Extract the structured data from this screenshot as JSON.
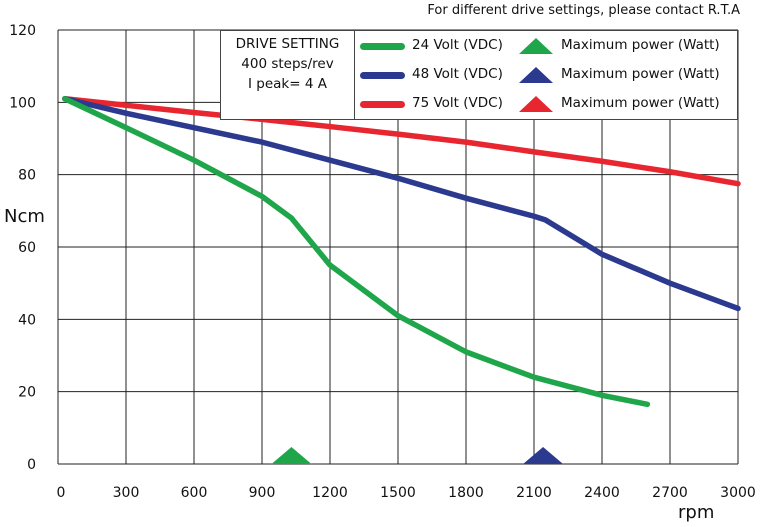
{
  "note": "For different drive settings, please contact R.T.A",
  "drive_setting": {
    "title": "DRIVE SETTING",
    "steps": "400 steps/rev",
    "peak": "I peak= 4 A"
  },
  "legend": [
    {
      "label": "24 Volt (VDC)",
      "power_label": "Maximum power (Watt)",
      "color": "#1fa64a"
    },
    {
      "label": "48 Volt (VDC)",
      "power_label": "Maximum power (Watt)",
      "color": "#2b3a8f"
    },
    {
      "label": "75 Volt (VDC)",
      "power_label": "Maximum power (Watt)",
      "color": "#e8262f"
    }
  ],
  "chart_data": {
    "type": "line",
    "title": "",
    "xlabel": "rpm",
    "ylabel": "Ncm",
    "xlim": [
      0,
      3000
    ],
    "ylim": [
      0,
      120
    ],
    "xticks": [
      0,
      300,
      600,
      900,
      1200,
      1500,
      1800,
      2100,
      2400,
      2700,
      3000
    ],
    "yticks": [
      0,
      20,
      40,
      60,
      80,
      100,
      120
    ],
    "grid": true,
    "series": [
      {
        "name": "24 Volt (VDC)",
        "color": "#1fa64a",
        "x": [
          30,
          300,
          600,
          900,
          1030,
          1200,
          1500,
          1800,
          2100,
          2400,
          2600
        ],
        "y": [
          101,
          93,
          84,
          74,
          68,
          55,
          41,
          31,
          24,
          19,
          16.5
        ],
        "max_power_rpm": 1030
      },
      {
        "name": "48 Volt (VDC)",
        "color": "#2b3a8f",
        "x": [
          30,
          300,
          600,
          900,
          1200,
          1500,
          1800,
          2100,
          2150,
          2400,
          2700,
          3000
        ],
        "y": [
          101,
          97,
          93,
          89,
          84,
          79,
          73.5,
          68.5,
          67.5,
          58,
          50,
          43
        ],
        "max_power_rpm": 2140
      },
      {
        "name": "75 Volt (VDC)",
        "color": "#e8262f",
        "x": [
          30,
          300,
          600,
          900,
          1200,
          1500,
          1800,
          2100,
          2400,
          2700,
          3000
        ],
        "y": [
          101,
          99.2,
          97.2,
          95.3,
          93.3,
          91.2,
          89,
          86.3,
          83.7,
          80.8,
          77.5
        ],
        "max_power_rpm": null
      }
    ]
  }
}
